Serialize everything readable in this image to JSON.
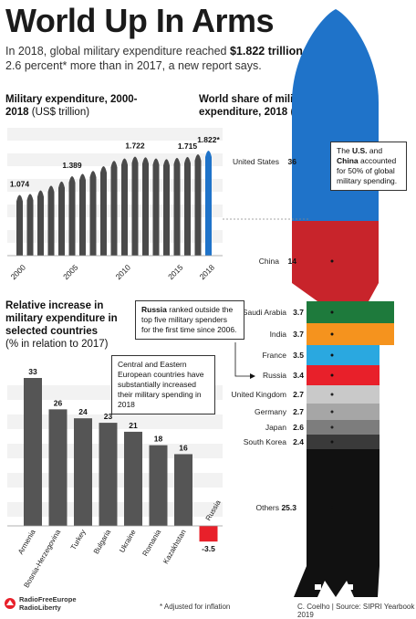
{
  "header": {
    "title": "World Up In Arms",
    "subtitle_pre": "In 2018, global military expenditure reached ",
    "subtitle_bold": "$1.822 trillion",
    "subtitle_post": ", 2.6 percent* more than in 2017, a new report says."
  },
  "sections": {
    "expenditure_title": "Military expenditure, 2000-2018",
    "expenditure_unit": "(US$ trillion)",
    "share_title": "World share of military expenditure, 2018",
    "share_unit": "(%)",
    "increase_title": "Relative increase in military expenditure in selected countries",
    "increase_unit": "(% in relation to 2017)"
  },
  "notes": {
    "us_china_pre": "The ",
    "us_bold": "U.S.",
    "us_china_mid": " and ",
    "china_bold": "China",
    "us_china_post": " accounted for 50% of global military spending.",
    "russia_bold": "Russia",
    "russia_text": " ranked outside the top five military spenders for the first time since 2006.",
    "europe_text": "Central and Eastern European countries have substantially increased their military spending in 2018"
  },
  "footer": {
    "adjusted": "* Adjusted for inflation",
    "source": "C. Coelho | Source: SIPRI Yearbook 2019",
    "logo_line1": "RadioFreeEurope",
    "logo_line2": "RadioLiberty"
  },
  "colors": {
    "us_blue": "#1f73c9",
    "china_red": "#c8242b",
    "saudi_green": "#1e7a3c",
    "india_orange": "#f5931e",
    "france_lightblue": "#2aa8e0",
    "russia_red": "#e8202a",
    "gray_dark": "#4a4a4a",
    "highlight_2018": "#1f73c9"
  },
  "chart_data": [
    {
      "type": "bar",
      "x": [
        2000,
        2001,
        2002,
        2003,
        2004,
        2005,
        2006,
        2007,
        2008,
        2009,
        2010,
        2011,
        2012,
        2013,
        2014,
        2015,
        2016,
        2017,
        2018
      ],
      "values": [
        1.074,
        1.09,
        1.15,
        1.23,
        1.3,
        1.389,
        1.43,
        1.48,
        1.56,
        1.65,
        1.69,
        1.722,
        1.71,
        1.69,
        1.68,
        1.7,
        1.715,
        1.76,
        1.822
      ],
      "data_labels": {
        "2000": "1.074",
        "2005": "1.389",
        "2011": "1.722",
        "2016": "1.715",
        "2018": "1.822*"
      },
      "x_ticks": [
        "2000",
        "2005",
        "2010",
        "2015",
        "2018"
      ],
      "ylim": [
        0,
        1.822
      ]
    },
    {
      "type": "bar",
      "categories": [
        "United States",
        "China",
        "Saudi Arabia",
        "India",
        "France",
        "Russia",
        "United Kingdom",
        "Germany",
        "Japan",
        "South Korea",
        "Others"
      ],
      "values": [
        36,
        14,
        3.7,
        3.7,
        3.5,
        3.4,
        2.7,
        2.7,
        2.6,
        2.4,
        25.3
      ]
    },
    {
      "type": "bar",
      "categories": [
        "Armenia",
        "Bosnia-Herzegovina",
        "Turkey",
        "Bulgaria",
        "Ukraine",
        "Romania",
        "Kazakhstan",
        "Russia"
      ],
      "values": [
        33,
        26,
        24,
        23,
        21,
        18,
        16,
        -3.5
      ],
      "ylim": [
        -3.5,
        33
      ]
    }
  ]
}
